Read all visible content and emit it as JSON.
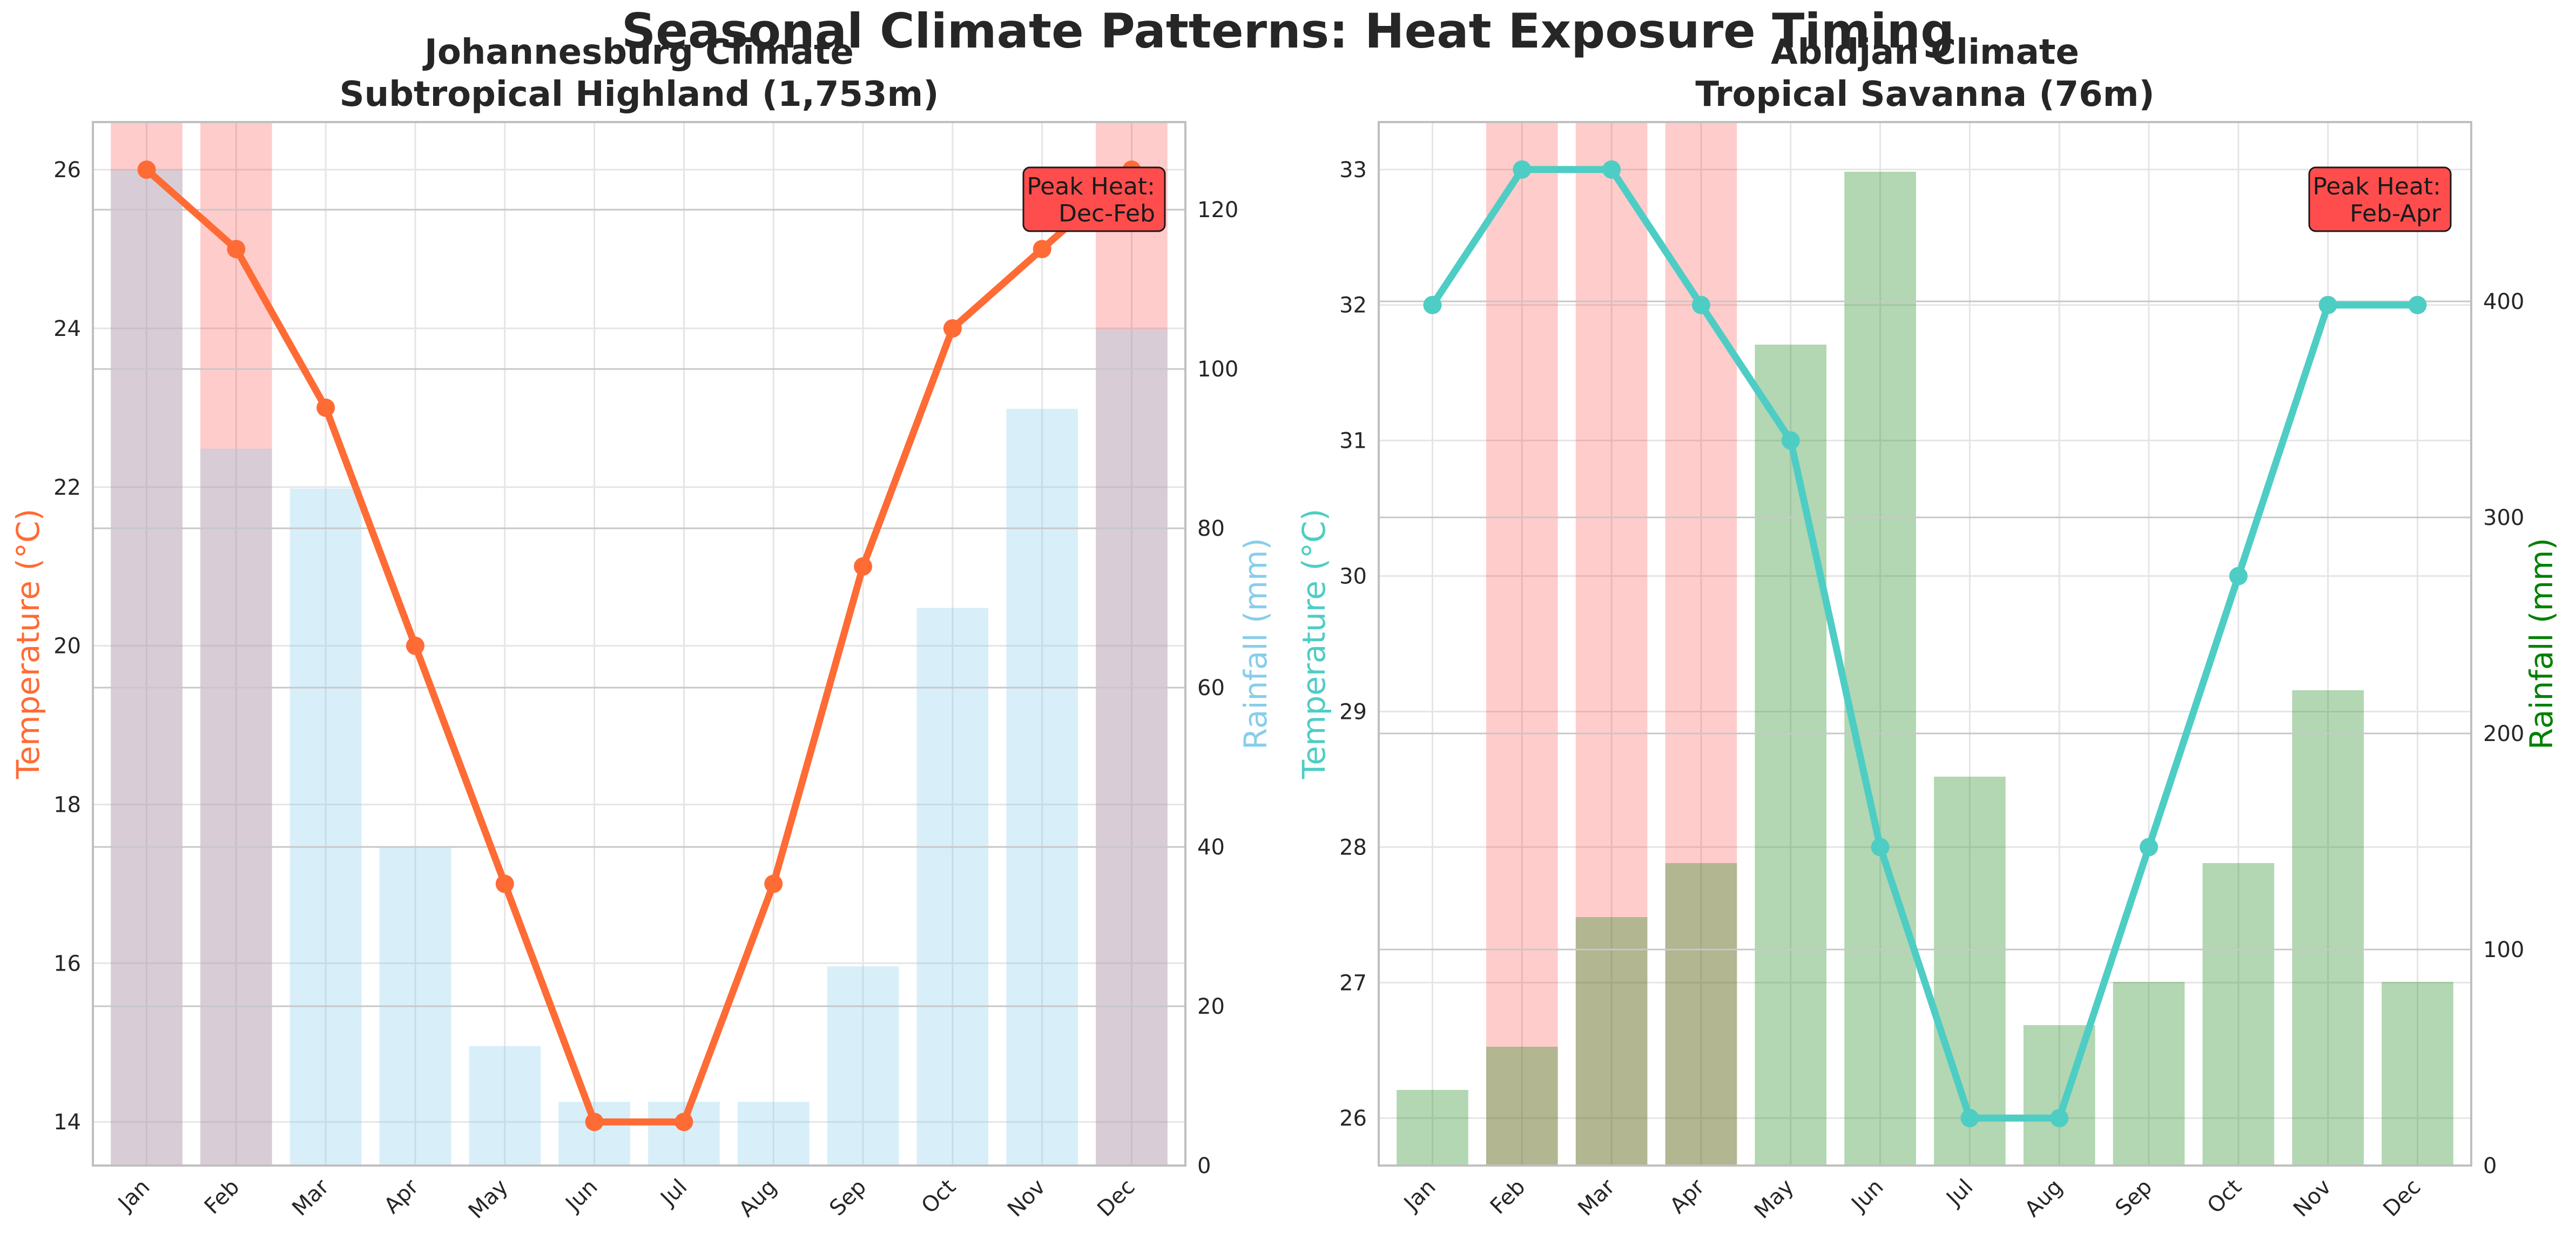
{
  "figure": {
    "suptitle": "Seasonal Climate Patterns: Heat Exposure Timing"
  },
  "colors": {
    "jhb_temp": "#FF6B35",
    "jhb_rain": "#87CEEB",
    "abj_temp": "#4ECDC4",
    "abj_rain": "#228B22",
    "abj_rain_label": "#008000",
    "peak_fill": "#FF0000",
    "peak_box": "#FF4D4D",
    "grid": "#E5E5E5",
    "axis": "#BFBFBF"
  },
  "chart_data": [
    {
      "type": "bar+line",
      "title_line1": "Johannesburg Climate",
      "title_line2": "Subtropical Highland (1,753m)",
      "categories": [
        "Jan",
        "Feb",
        "Mar",
        "Apr",
        "May",
        "Jun",
        "Jul",
        "Aug",
        "Sep",
        "Oct",
        "Nov",
        "Dec"
      ],
      "temperature": [
        26,
        25,
        23,
        20,
        17,
        14,
        14,
        17,
        21,
        24,
        25,
        26
      ],
      "rainfall": [
        125,
        90,
        85,
        40,
        15,
        8,
        8,
        8,
        25,
        70,
        95,
        105
      ],
      "peak_months": [
        "Jan",
        "Feb",
        "Dec"
      ],
      "ylabel_left": "Temperature (°C)",
      "ylabel_right": "Rainfall (mm)",
      "ylim_left": [
        13.45,
        26.6
      ],
      "ylim_right": [
        0,
        131
      ],
      "yticks_left": [
        14,
        16,
        18,
        20,
        22,
        24,
        26
      ],
      "yticks_right": [
        0,
        20,
        40,
        60,
        80,
        100,
        120
      ],
      "annotation": {
        "line1": "Peak Heat:",
        "line2": "Dec-Feb"
      }
    },
    {
      "type": "bar+line",
      "title_line1": "Abidjan Climate",
      "title_line2": "Tropical Savanna (76m)",
      "categories": [
        "Jan",
        "Feb",
        "Mar",
        "Apr",
        "May",
        "Jun",
        "Jul",
        "Aug",
        "Sep",
        "Oct",
        "Nov",
        "Dec"
      ],
      "temperature": [
        32,
        33,
        33,
        32,
        31,
        28,
        26,
        26,
        28,
        30,
        32,
        32
      ],
      "rainfall": [
        35,
        55,
        115,
        140,
        380,
        460,
        180,
        65,
        85,
        140,
        220,
        85
      ],
      "peak_months": [
        "Feb",
        "Mar",
        "Apr"
      ],
      "ylabel_left": "Temperature (°C)",
      "ylabel_right": "Rainfall (mm)",
      "ylim_left": [
        25.65,
        33.35
      ],
      "ylim_right": [
        0,
        483
      ],
      "yticks_left": [
        26,
        27,
        28,
        29,
        30,
        31,
        32,
        33
      ],
      "yticks_right": [
        0,
        100,
        200,
        300,
        400
      ],
      "annotation": {
        "line1": "Peak Heat:",
        "line2": "Feb-Apr"
      }
    }
  ]
}
